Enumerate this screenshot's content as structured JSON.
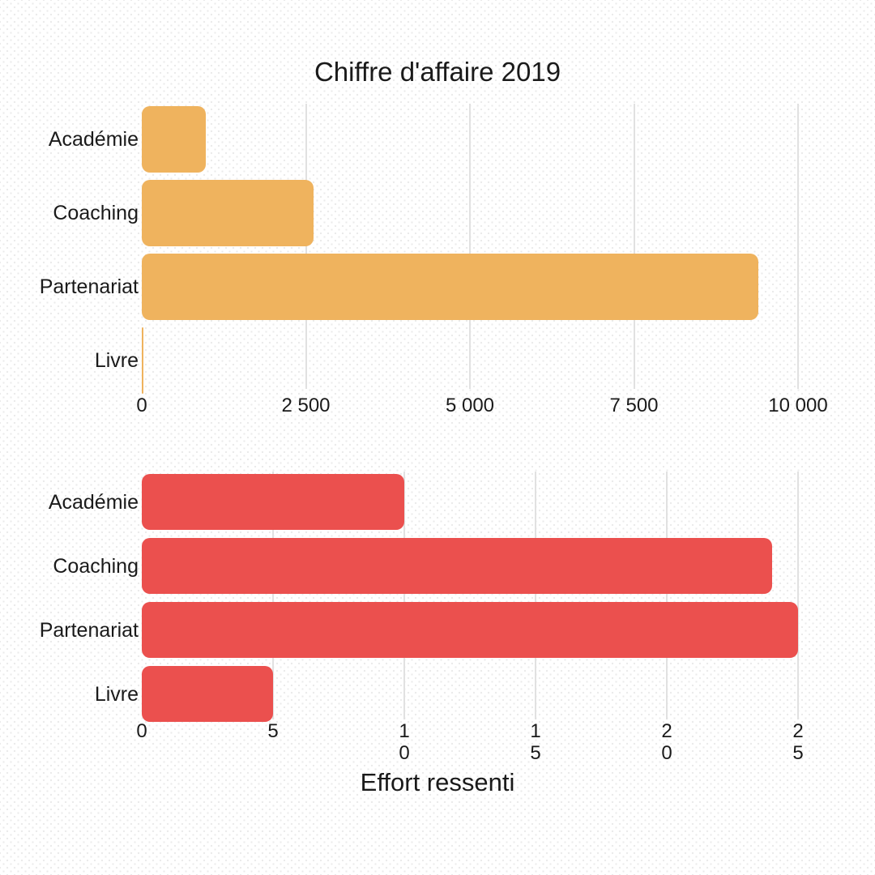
{
  "figure": {
    "title": "Chiffre d'affaire 2019",
    "bottom_axis_title": "Effort ressenti"
  },
  "colors": {
    "top_bar": "#EFB35E",
    "bottom_bar": "#EB504E",
    "gridline": "#E1E1E1",
    "text": "#1A1A1A",
    "background": "#FFFFFF",
    "background_dots": "#EBEBEB"
  },
  "chart_data": [
    {
      "type": "bar",
      "orientation": "horizontal",
      "title": "Chiffre d'affaire 2019",
      "xlabel": "",
      "ylabel": "",
      "categories": [
        "Académie",
        "Coaching",
        "Partenariat",
        "Livre"
      ],
      "values": [
        975,
        2620,
        9400,
        30
      ],
      "axis_max": 10000,
      "xlim": [
        0,
        10000
      ],
      "grid": true,
      "legend": "none",
      "bar_color": "#EFB35E",
      "ticks": [
        {
          "value": 0,
          "label": "0"
        },
        {
          "value": 2500,
          "label": "2 500"
        },
        {
          "value": 5000,
          "label": "5 000"
        },
        {
          "value": 7500,
          "label": "7 500"
        },
        {
          "value": 10000,
          "label": "10 000"
        }
      ]
    },
    {
      "type": "bar",
      "orientation": "horizontal",
      "title": "",
      "xlabel": "Effort ressenti",
      "ylabel": "",
      "categories": [
        "Académie",
        "Coaching",
        "Partenariat",
        "Livre"
      ],
      "values": [
        10,
        24,
        25,
        5
      ],
      "axis_max": 25,
      "xlim": [
        0,
        25
      ],
      "grid": true,
      "legend": "none",
      "bar_color": "#EB504E",
      "tick_label_wrap": "vertical-digits",
      "ticks": [
        {
          "value": 0,
          "label": "0"
        },
        {
          "value": 5,
          "label": "5"
        },
        {
          "value": 10,
          "label": "10"
        },
        {
          "value": 15,
          "label": "15"
        },
        {
          "value": 20,
          "label": "20"
        },
        {
          "value": 25,
          "label": "25"
        }
      ]
    }
  ]
}
